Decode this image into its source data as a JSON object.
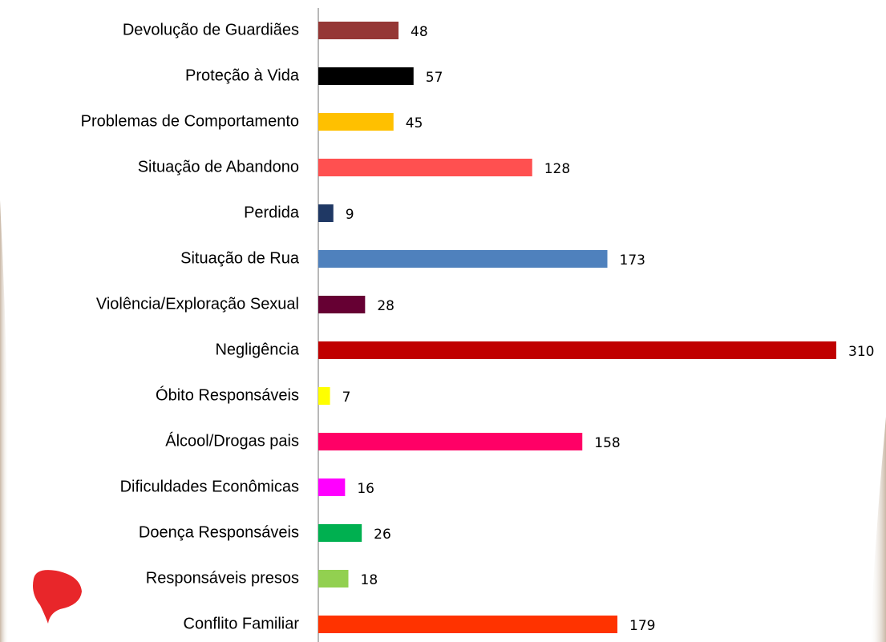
{
  "chart_data": {
    "type": "bar",
    "orientation": "horizontal",
    "categories": [
      "Devolução de Guardiães",
      "Proteção à Vida",
      "Problemas de Comportamento",
      "Situação de Abandono",
      "Perdida",
      "Situação de Rua",
      "Violência/Exploração Sexual",
      "Negligência",
      "Óbito Responsáveis",
      "Álcool/Drogas pais",
      "Dificuldades Econômicas",
      "Doença Responsáveis",
      "Responsáveis presos",
      "Conflito Familiar"
    ],
    "values": [
      48,
      57,
      45,
      128,
      9,
      173,
      28,
      310,
      7,
      158,
      16,
      26,
      18,
      179
    ],
    "colors": [
      "#953735",
      "#000000",
      "#ffc000",
      "#ff5050",
      "#1f3864",
      "#4f81bd",
      "#660033",
      "#c00000",
      "#ffff00",
      "#ff0066",
      "#ff00ff",
      "#00b050",
      "#92d050",
      "#ff3300"
    ],
    "grid": false
  }
}
